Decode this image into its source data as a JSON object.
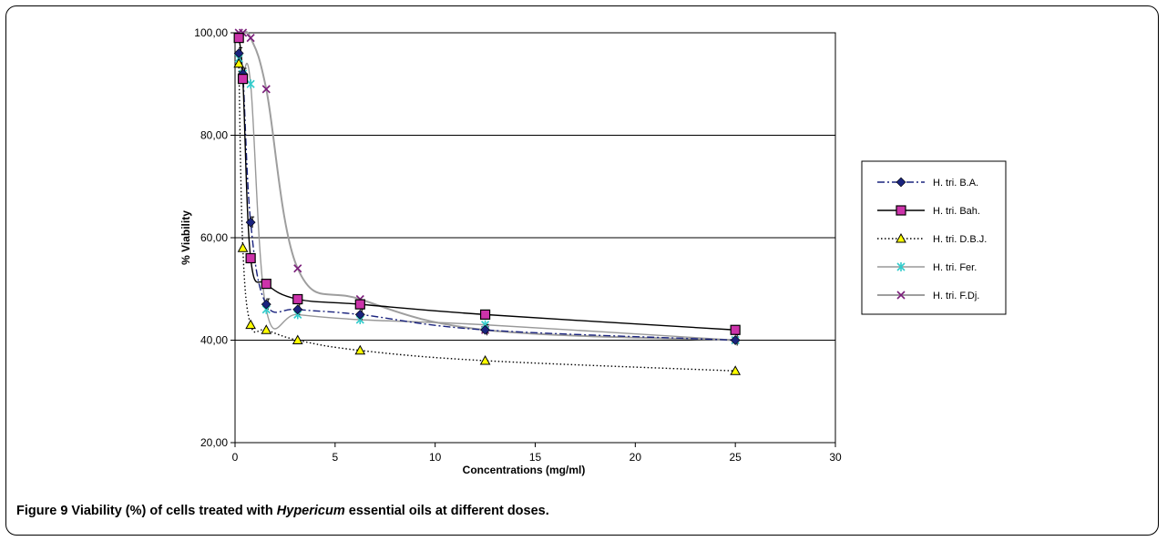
{
  "caption": {
    "label": "Figure 9",
    "text_before": " Viability (%) of cells treated with ",
    "text_italic": "Hypericum",
    "text_after": " essential oils at different doses."
  },
  "chart_data": {
    "type": "line",
    "title": "",
    "xlabel": "Concentrations (mg/ml)",
    "ylabel": "% Viability",
    "xlim": [
      0,
      30
    ],
    "ylim": [
      20,
      100
    ],
    "xticks": [
      0,
      5,
      10,
      15,
      20,
      25,
      30
    ],
    "xtick_labels": [
      "0",
      "5",
      "10",
      "15",
      "20",
      "25",
      "30"
    ],
    "yticks": [
      20,
      40,
      60,
      80,
      100
    ],
    "ytick_labels": [
      "20,00",
      "40,00",
      "60,00",
      "80,00",
      "100,00"
    ],
    "grid": "horizontal",
    "legend_position": "right",
    "series": [
      {
        "name": "H. tri. B.A.",
        "color": "#1a237e",
        "dash": "8,3,2,3",
        "marker": "diamond",
        "x": [
          0.19,
          0.39,
          0.78,
          1.56,
          3.13,
          6.25,
          12.5,
          25
        ],
        "y": [
          96,
          92,
          63,
          47,
          46,
          45,
          42,
          40
        ]
      },
      {
        "name": "H. tri. Bah.",
        "color": "#000000",
        "dash": "",
        "marker": "square",
        "x": [
          0.19,
          0.39,
          0.78,
          1.56,
          3.13,
          6.25,
          12.5,
          25
        ],
        "y": [
          99,
          91,
          56,
          51,
          48,
          47,
          45,
          42
        ]
      },
      {
        "name": "H. tri. D.B.J.",
        "color": "#000000",
        "dash": "1.5,2.5",
        "marker": "triangle",
        "x": [
          0.19,
          0.39,
          0.78,
          1.56,
          3.13,
          6.25,
          12.5,
          25
        ],
        "y": [
          94,
          58,
          43,
          42,
          40,
          38,
          36,
          34
        ]
      },
      {
        "name": "H. tri. Fer.",
        "color": "#999999",
        "dash": "",
        "marker": "star",
        "x": [
          0.19,
          0.39,
          0.78,
          1.56,
          3.13,
          6.25,
          12.5,
          25
        ],
        "y": [
          95,
          92,
          90,
          46,
          45,
          44,
          43,
          40
        ]
      },
      {
        "name": "H. tri. F.Dj.",
        "color": "#9e9e9e",
        "dash": "",
        "marker": "x",
        "x": [
          0.19,
          0.39,
          0.78,
          1.56,
          3.13,
          6.25,
          12.5,
          25
        ],
        "y": [
          100,
          100,
          99,
          89,
          54,
          48,
          42,
          40
        ]
      }
    ],
    "colors": {
      "marker_fill_blue": "#1a237e",
      "marker_fill_magenta": "#cc33aa",
      "marker_fill_yellow": "#ffff00",
      "marker_cyan": "#33cccc",
      "marker_purple": "#7b1f7b"
    }
  }
}
